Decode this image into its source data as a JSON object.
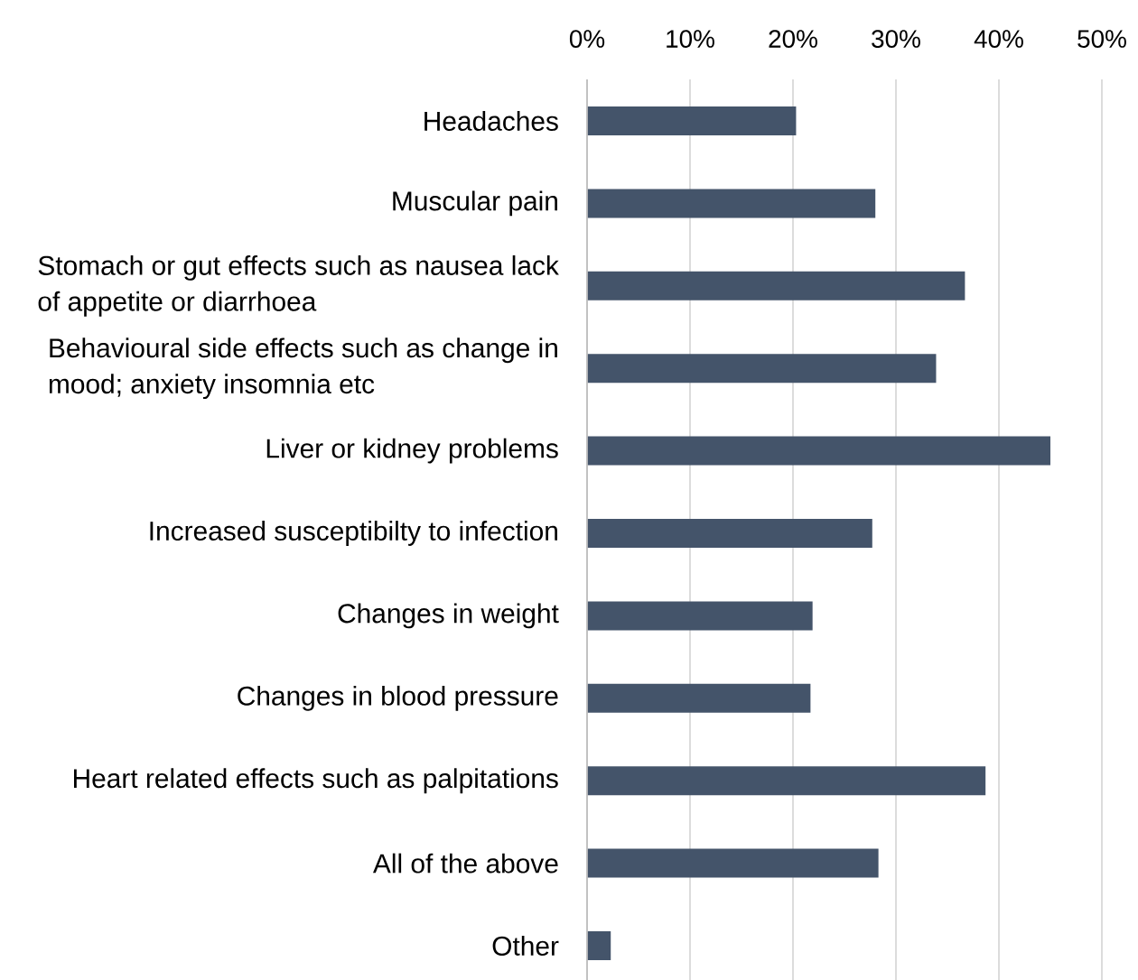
{
  "chart_data": {
    "type": "bar",
    "orientation": "horizontal",
    "categories": [
      "Headaches",
      "Muscular pain",
      "Stomach or gut effects such as nausea lack of appetite or diarrhoea",
      "Behavioural side effects such as change in mood; anxiety insomnia etc",
      "Liver or kidney problems",
      "Increased susceptibilty to infection",
      "Changes in weight",
      "Changes in blood pressure",
      "Heart related effects such as palpitations",
      "All of the above",
      "Other"
    ],
    "values": [
      20.3,
      28.0,
      36.7,
      33.9,
      45.0,
      27.7,
      21.9,
      21.7,
      38.7,
      28.3,
      2.3
    ],
    "color": "#44546a",
    "xlim": [
      0,
      50
    ],
    "xticks": [
      {
        "value": 0,
        "label": "0%"
      },
      {
        "value": 10,
        "label": "10%"
      },
      {
        "value": 20,
        "label": "20%"
      },
      {
        "value": 30,
        "label": "30%"
      },
      {
        "value": 40,
        "label": "40%"
      },
      {
        "value": 50,
        "label": "50%"
      }
    ],
    "grid": "x"
  }
}
